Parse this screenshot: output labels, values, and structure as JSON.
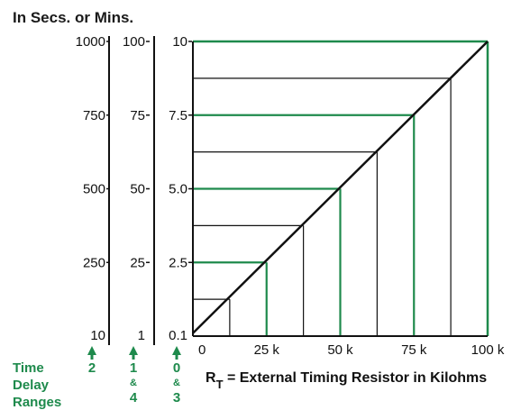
{
  "chart_data": {
    "type": "line",
    "title": "In Secs. or Mins.",
    "xlabel_main": "R",
    "xlabel_sub": "T",
    "xlabel_rest": " = External Timing Resistor in Kilohms",
    "x_ticks": [
      "0",
      "25 k",
      "50 k",
      "75 k",
      "100 k"
    ],
    "x_tick_values": [
      0,
      25,
      50,
      75,
      100
    ],
    "xlim": [
      0,
      100
    ],
    "ylim": [
      0,
      10
    ],
    "y_axes": [
      {
        "labels": [
          "1000",
          "750",
          "500",
          "250",
          "10"
        ],
        "range_number": "2"
      },
      {
        "labels": [
          "100",
          "75",
          "50",
          "25",
          "1"
        ],
        "range_number": "1",
        "range_number_2": "4"
      },
      {
        "labels": [
          "10",
          "7.5",
          "5.0",
          "2.5",
          "0.1"
        ],
        "range_number": "0",
        "range_number_2": "3"
      }
    ],
    "y_tick_values": [
      10,
      7.5,
      5,
      2.5,
      0.1
    ],
    "range_title": [
      "Time",
      "Delay",
      "Ranges"
    ],
    "amp": "&",
    "series": [
      {
        "x": [
          0,
          100
        ],
        "y": [
          0.1,
          10
        ]
      }
    ],
    "guide_y_values": [
      1.25,
      2.5,
      3.75,
      5,
      6.25,
      7.5,
      8.75
    ],
    "colors": {
      "green": "#1e8a4c",
      "black": "#111111"
    }
  }
}
